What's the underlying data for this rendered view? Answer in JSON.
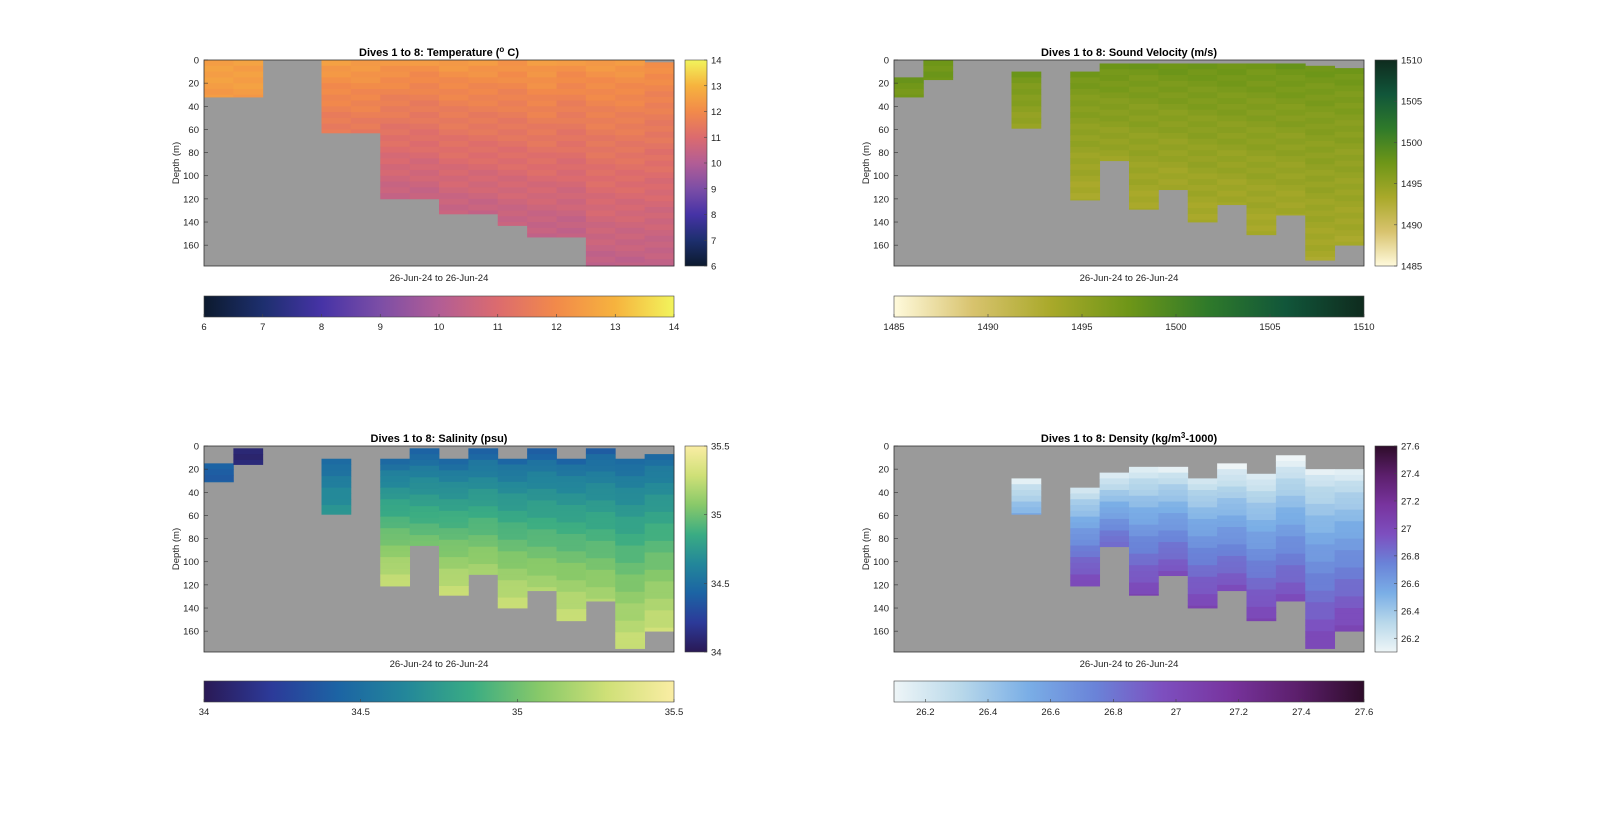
{
  "figure": {
    "background": "#ffffff",
    "empty_color": "#9a9a9a"
  },
  "chart_data": [
    {
      "type": "heatmap",
      "title": "Dives 1 to 8: Temperature (",
      "title_sup": "o",
      "title_end": " C)",
      "xlabel": "26-Jun-24 to 26-Jun-24",
      "ylabel": "Depth (m)",
      "yticks": [
        0,
        20,
        40,
        60,
        80,
        100,
        120,
        140,
        160
      ],
      "ylim": [
        0,
        178
      ],
      "columns": 16,
      "column_values": [
        {
          "top": 0,
          "bottom": 32,
          "v0": 12.6,
          "v1": 12.4
        },
        {
          "top": 0,
          "bottom": 32,
          "v0": 12.6,
          "v1": 12.4
        },
        null,
        null,
        {
          "top": 0,
          "bottom": 63,
          "v0": 12.5,
          "v1": 11.4
        },
        {
          "top": 0,
          "bottom": 63,
          "v0": 12.5,
          "v1": 11.4
        },
        {
          "top": 0,
          "bottom": 120,
          "v0": 12.4,
          "v1": 10.4
        },
        {
          "top": 0,
          "bottom": 120,
          "v0": 12.3,
          "v1": 10.4
        },
        {
          "top": 0,
          "bottom": 133,
          "v0": 12.4,
          "v1": 10.4
        },
        {
          "top": 0,
          "bottom": 133,
          "v0": 12.4,
          "v1": 10.4
        },
        {
          "top": 0,
          "bottom": 143,
          "v0": 12.3,
          "v1": 10.4
        },
        {
          "top": 0,
          "bottom": 153,
          "v0": 12.5,
          "v1": 10.3
        },
        {
          "top": 0,
          "bottom": 153,
          "v0": 12.3,
          "v1": 10.3
        },
        {
          "top": 0,
          "bottom": 178,
          "v0": 12.4,
          "v1": 10.3
        },
        {
          "top": 0,
          "bottom": 178,
          "v0": 12.4,
          "v1": 10.3
        },
        {
          "top": 2,
          "bottom": 178,
          "v0": 12.2,
          "v1": 10.3
        }
      ],
      "colorbar": {
        "range": [
          6,
          14
        ],
        "ticks": [
          6,
          7,
          8,
          9,
          10,
          11,
          12,
          13,
          14
        ],
        "colors": [
          "#0c1a2e",
          "#1d2f6e",
          "#4633a6",
          "#7c4ea6",
          "#b25d95",
          "#dc6b6e",
          "#f28a4a",
          "#f6b33e",
          "#f2f45c"
        ]
      }
    },
    {
      "type": "heatmap",
      "title": "Dives 1 to 8: Sound Velocity (m/s)",
      "xlabel": "26-Jun-24 to 26-Jun-24",
      "ylabel": "Depth (m)",
      "yticks": [
        0,
        20,
        40,
        60,
        80,
        100,
        120,
        140,
        160
      ],
      "ylim": [
        0,
        178
      ],
      "columns": 16,
      "column_values": [
        {
          "top": 15,
          "bottom": 32,
          "v0": 1497.5,
          "v1": 1497.0
        },
        {
          "top": 0,
          "bottom": 17,
          "v0": 1497.5,
          "v1": 1497.5
        },
        null,
        null,
        {
          "top": 10,
          "bottom": 59,
          "v0": 1497.3,
          "v1": 1494.5
        },
        null,
        {
          "top": 10,
          "bottom": 121,
          "v0": 1497.2,
          "v1": 1493.2
        },
        {
          "top": 3,
          "bottom": 87,
          "v0": 1497.6,
          "v1": 1494.2
        },
        {
          "top": 3,
          "bottom": 129,
          "v0": 1497.4,
          "v1": 1493.3
        },
        {
          "top": 3,
          "bottom": 112,
          "v0": 1497.6,
          "v1": 1493.6
        },
        {
          "top": 3,
          "bottom": 140,
          "v0": 1497.5,
          "v1": 1493.3
        },
        {
          "top": 3,
          "bottom": 125,
          "v0": 1497.6,
          "v1": 1493.6
        },
        {
          "top": 3,
          "bottom": 151,
          "v0": 1497.4,
          "v1": 1493.3
        },
        {
          "top": 3,
          "bottom": 134,
          "v0": 1497.6,
          "v1": 1493.6
        },
        {
          "top": 5,
          "bottom": 173,
          "v0": 1497.4,
          "v1": 1493.3
        },
        {
          "top": 7,
          "bottom": 160,
          "v0": 1497.3,
          "v1": 1493.4
        }
      ],
      "colorbar": {
        "range": [
          1485,
          1510
        ],
        "ticks": [
          1485,
          1490,
          1495,
          1500,
          1505,
          1510
        ],
        "colors": [
          "#fffadc",
          "#d8c36e",
          "#a9a92a",
          "#6e9618",
          "#2f7a2a",
          "#11563a",
          "#0f2b1e"
        ]
      }
    },
    {
      "type": "heatmap",
      "title": "Dives 1 to 8: Salinity (psu)",
      "xlabel": "26-Jun-24 to 26-Jun-24",
      "ylabel": "Depth (m)",
      "yticks": [
        0,
        20,
        40,
        60,
        80,
        100,
        120,
        140,
        160
      ],
      "ylim": [
        0,
        178
      ],
      "columns": 16,
      "column_values": [
        {
          "top": 15,
          "bottom": 31,
          "v0": 34.4,
          "v1": 34.4
        },
        {
          "top": 2,
          "bottom": 16,
          "v0": 34.1,
          "v1": 34.1
        },
        null,
        null,
        {
          "top": 11,
          "bottom": 59,
          "v0": 34.45,
          "v1": 34.75
        },
        null,
        {
          "top": 11,
          "bottom": 121,
          "v0": 34.45,
          "v1": 35.3
        },
        {
          "top": 2,
          "bottom": 86,
          "v0": 34.4,
          "v1": 35.05
        },
        {
          "top": 11,
          "bottom": 129,
          "v0": 34.45,
          "v1": 35.3
        },
        {
          "top": 2,
          "bottom": 111,
          "v0": 34.4,
          "v1": 35.2
        },
        {
          "top": 11,
          "bottom": 140,
          "v0": 34.45,
          "v1": 35.3
        },
        {
          "top": 2,
          "bottom": 125,
          "v0": 34.4,
          "v1": 35.2
        },
        {
          "top": 11,
          "bottom": 151,
          "v0": 34.45,
          "v1": 35.3
        },
        {
          "top": 2,
          "bottom": 134,
          "v0": 34.4,
          "v1": 35.2
        },
        {
          "top": 11,
          "bottom": 175,
          "v0": 34.45,
          "v1": 35.3
        },
        {
          "top": 7,
          "bottom": 160,
          "v0": 34.45,
          "v1": 35.3
        }
      ],
      "colorbar": {
        "range": [
          34,
          35.5
        ],
        "ticks": [
          34,
          34.5,
          35,
          35.5
        ],
        "tick_labels": [
          "34",
          "34.5",
          "35",
          "35.5"
        ],
        "colors": [
          "#2a1955",
          "#2c3a99",
          "#1c64a4",
          "#23879a",
          "#3aac83",
          "#88c969",
          "#cfe077",
          "#faeda4"
        ]
      }
    },
    {
      "type": "heatmap",
      "title": "Dives 1 to 8: Density (kg/m",
      "title_sup": "3",
      "title_end": "-1000)",
      "xlabel": "26-Jun-24 to 26-Jun-24",
      "ylabel": "Depth (m)",
      "yticks": [
        0,
        20,
        40,
        60,
        80,
        100,
        120,
        140,
        160
      ],
      "ylim": [
        0,
        178
      ],
      "columns": 16,
      "column_values": [
        null,
        null,
        null,
        null,
        {
          "top": 28,
          "bottom": 59,
          "v0": 26.15,
          "v1": 26.55
        },
        null,
        {
          "top": 36,
          "bottom": 121,
          "v0": 26.2,
          "v1": 27.05
        },
        {
          "top": 23,
          "bottom": 87,
          "v0": 26.15,
          "v1": 26.9
        },
        {
          "top": 18,
          "bottom": 129,
          "v0": 26.15,
          "v1": 27.05
        },
        {
          "top": 18,
          "bottom": 112,
          "v0": 26.15,
          "v1": 27.0
        },
        {
          "top": 28,
          "bottom": 140,
          "v0": 26.2,
          "v1": 27.05
        },
        {
          "top": 15,
          "bottom": 125,
          "v0": 26.1,
          "v1": 27.0
        },
        {
          "top": 24,
          "bottom": 151,
          "v0": 26.15,
          "v1": 27.05
        },
        {
          "top": 8,
          "bottom": 134,
          "v0": 26.1,
          "v1": 27.0
        },
        {
          "top": 20,
          "bottom": 175,
          "v0": 26.15,
          "v1": 27.05
        },
        {
          "top": 20,
          "bottom": 160,
          "v0": 26.15,
          "v1": 27.05
        }
      ],
      "colorbar": {
        "range": [
          26.1,
          27.6
        ],
        "ticks": [
          26.2,
          26.4,
          26.6,
          26.8,
          27,
          27.2,
          27.4,
          27.6
        ],
        "tick_labels": [
          "26.2",
          "26.4",
          "26.6",
          "26.8",
          "27",
          "27.2",
          "27.4",
          "27.6"
        ],
        "colors": [
          "#eef5f7",
          "#b8d8ea",
          "#7aaee6",
          "#6a83d8",
          "#7d4fbf",
          "#78349e",
          "#5c1f6c",
          "#2e0c2a"
        ]
      }
    }
  ]
}
